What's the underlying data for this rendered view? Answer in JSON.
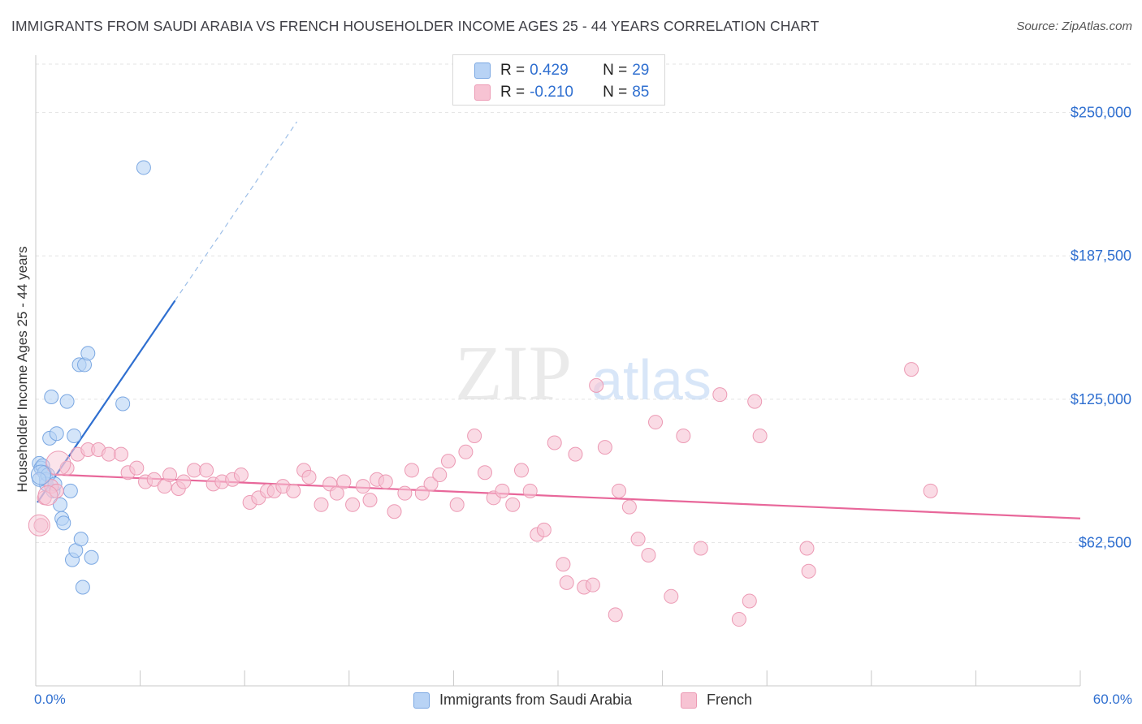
{
  "title": "IMMIGRANTS FROM SAUDI ARABIA VS FRENCH HOUSEHOLDER INCOME AGES 25 - 44 YEARS CORRELATION CHART",
  "source": "Source: ZipAtlas.com",
  "watermark": {
    "zip": "ZIP",
    "atlas": "atlas"
  },
  "colors": {
    "blue_fill": "#b8d3f5",
    "blue_stroke": "#7aa7e2",
    "blue_line": "#2f6fd0",
    "pink_fill": "#f7c3d3",
    "pink_stroke": "#ec9ab4",
    "pink_line": "#e8679a",
    "tick_label": "#2f6fd0",
    "grid": "#e3e3e3"
  },
  "legend": {
    "rows": [
      {
        "r_label": "R =",
        "r_value": "0.429",
        "n_label": "N =",
        "n_value": "29"
      },
      {
        "r_label": "R =",
        "r_value": "-0.210",
        "n_label": "N =",
        "n_value": "85"
      }
    ]
  },
  "bottom_legend": {
    "series1": "Immigrants from Saudi Arabia",
    "series2": "French"
  },
  "chart_data": {
    "type": "scatter",
    "title": "IMMIGRANTS FROM SAUDI ARABIA VS FRENCH HOUSEHOLDER INCOME AGES 25 - 44 YEARS CORRELATION CHART",
    "xlabel": "",
    "ylabel": "Householder Income Ages 25 - 44 years",
    "xlim": [
      0,
      60
    ],
    "ylim": [
      0,
      275000
    ],
    "x_tick_labels": [
      "0.0%",
      "60.0%"
    ],
    "y_ticks": [
      62500,
      125000,
      187500,
      250000
    ],
    "y_tick_labels": [
      "$62,500",
      "$125,000",
      "$187,500",
      "$250,000"
    ],
    "grid": true,
    "legend_position": "top-center",
    "series": [
      {
        "name": "Immigrants from Saudi Arabia",
        "color": "#b8d3f5",
        "points": [
          [
            0.2,
            97000
          ],
          [
            0.3,
            95000
          ],
          [
            0.4,
            96000
          ],
          [
            0.5,
            93000
          ],
          [
            0.6,
            90000
          ],
          [
            0.6,
            88000
          ],
          [
            0.7,
            92000
          ],
          [
            0.8,
            108000
          ],
          [
            0.9,
            126000
          ],
          [
            1.0,
            85000
          ],
          [
            1.1,
            88000
          ],
          [
            1.2,
            110000
          ],
          [
            1.4,
            79000
          ],
          [
            1.5,
            73000
          ],
          [
            1.6,
            71000
          ],
          [
            1.8,
            124000
          ],
          [
            2.0,
            85000
          ],
          [
            2.1,
            55000
          ],
          [
            2.2,
            109000
          ],
          [
            2.3,
            59000
          ],
          [
            2.5,
            140000
          ],
          [
            2.6,
            64000
          ],
          [
            2.7,
            43000
          ],
          [
            2.8,
            140000
          ],
          [
            3.0,
            145000
          ],
          [
            3.2,
            56000
          ],
          [
            5.0,
            123000
          ],
          [
            6.2,
            226000
          ],
          [
            0.2,
            90000
          ]
        ],
        "trend": {
          "x0": 0.1,
          "y0": 80000,
          "x1": 8.0,
          "y1": 168000,
          "dash_to_x": 15.0
        }
      },
      {
        "name": "French",
        "color": "#f7c3d3",
        "points": [
          [
            0.3,
            70000
          ],
          [
            0.5,
            82000
          ],
          [
            0.9,
            87000
          ],
          [
            1.2,
            85000
          ],
          [
            1.8,
            95000
          ],
          [
            2.4,
            101000
          ],
          [
            3.0,
            103000
          ],
          [
            3.6,
            103000
          ],
          [
            4.2,
            101000
          ],
          [
            4.9,
            101000
          ],
          [
            5.3,
            93000
          ],
          [
            5.8,
            95000
          ],
          [
            6.3,
            89000
          ],
          [
            6.8,
            90000
          ],
          [
            7.4,
            87000
          ],
          [
            7.7,
            92000
          ],
          [
            8.2,
            86000
          ],
          [
            8.5,
            89000
          ],
          [
            9.1,
            94000
          ],
          [
            9.8,
            94000
          ],
          [
            10.2,
            88000
          ],
          [
            10.7,
            89000
          ],
          [
            11.3,
            90000
          ],
          [
            11.8,
            92000
          ],
          [
            12.3,
            80000
          ],
          [
            12.8,
            82000
          ],
          [
            13.3,
            85000
          ],
          [
            13.7,
            85000
          ],
          [
            14.2,
            87000
          ],
          [
            14.8,
            85000
          ],
          [
            15.4,
            94000
          ],
          [
            15.7,
            91000
          ],
          [
            16.4,
            79000
          ],
          [
            16.9,
            88000
          ],
          [
            17.3,
            84000
          ],
          [
            17.7,
            89000
          ],
          [
            18.2,
            79000
          ],
          [
            18.8,
            87000
          ],
          [
            19.2,
            81000
          ],
          [
            19.6,
            90000
          ],
          [
            20.1,
            89000
          ],
          [
            20.6,
            76000
          ],
          [
            21.2,
            84000
          ],
          [
            21.6,
            94000
          ],
          [
            22.2,
            84000
          ],
          [
            22.7,
            88000
          ],
          [
            23.2,
            92000
          ],
          [
            23.7,
            98000
          ],
          [
            24.2,
            79000
          ],
          [
            24.7,
            102000
          ],
          [
            25.2,
            109000
          ],
          [
            25.8,
            93000
          ],
          [
            26.3,
            82000
          ],
          [
            26.8,
            85000
          ],
          [
            27.4,
            79000
          ],
          [
            27.9,
            94000
          ],
          [
            28.4,
            85000
          ],
          [
            28.8,
            66000
          ],
          [
            29.2,
            68000
          ],
          [
            29.8,
            106000
          ],
          [
            30.3,
            53000
          ],
          [
            30.5,
            45000
          ],
          [
            31.0,
            101000
          ],
          [
            31.5,
            43000
          ],
          [
            32.0,
            44000
          ],
          [
            32.2,
            131000
          ],
          [
            32.7,
            104000
          ],
          [
            33.3,
            31000
          ],
          [
            33.5,
            85000
          ],
          [
            34.1,
            78000
          ],
          [
            34.6,
            64000
          ],
          [
            35.2,
            57000
          ],
          [
            35.6,
            115000
          ],
          [
            36.5,
            39000
          ],
          [
            37.2,
            109000
          ],
          [
            38.2,
            60000
          ],
          [
            39.3,
            127000
          ],
          [
            40.4,
            29000
          ],
          [
            41.0,
            37000
          ],
          [
            41.3,
            124000
          ],
          [
            41.6,
            109000
          ],
          [
            44.3,
            60000
          ],
          [
            44.4,
            50000
          ],
          [
            50.3,
            138000
          ],
          [
            51.4,
            85000
          ]
        ],
        "trend": {
          "x0": 0.0,
          "y0": 92500,
          "x1": 60.0,
          "y1": 73000
        }
      }
    ]
  }
}
